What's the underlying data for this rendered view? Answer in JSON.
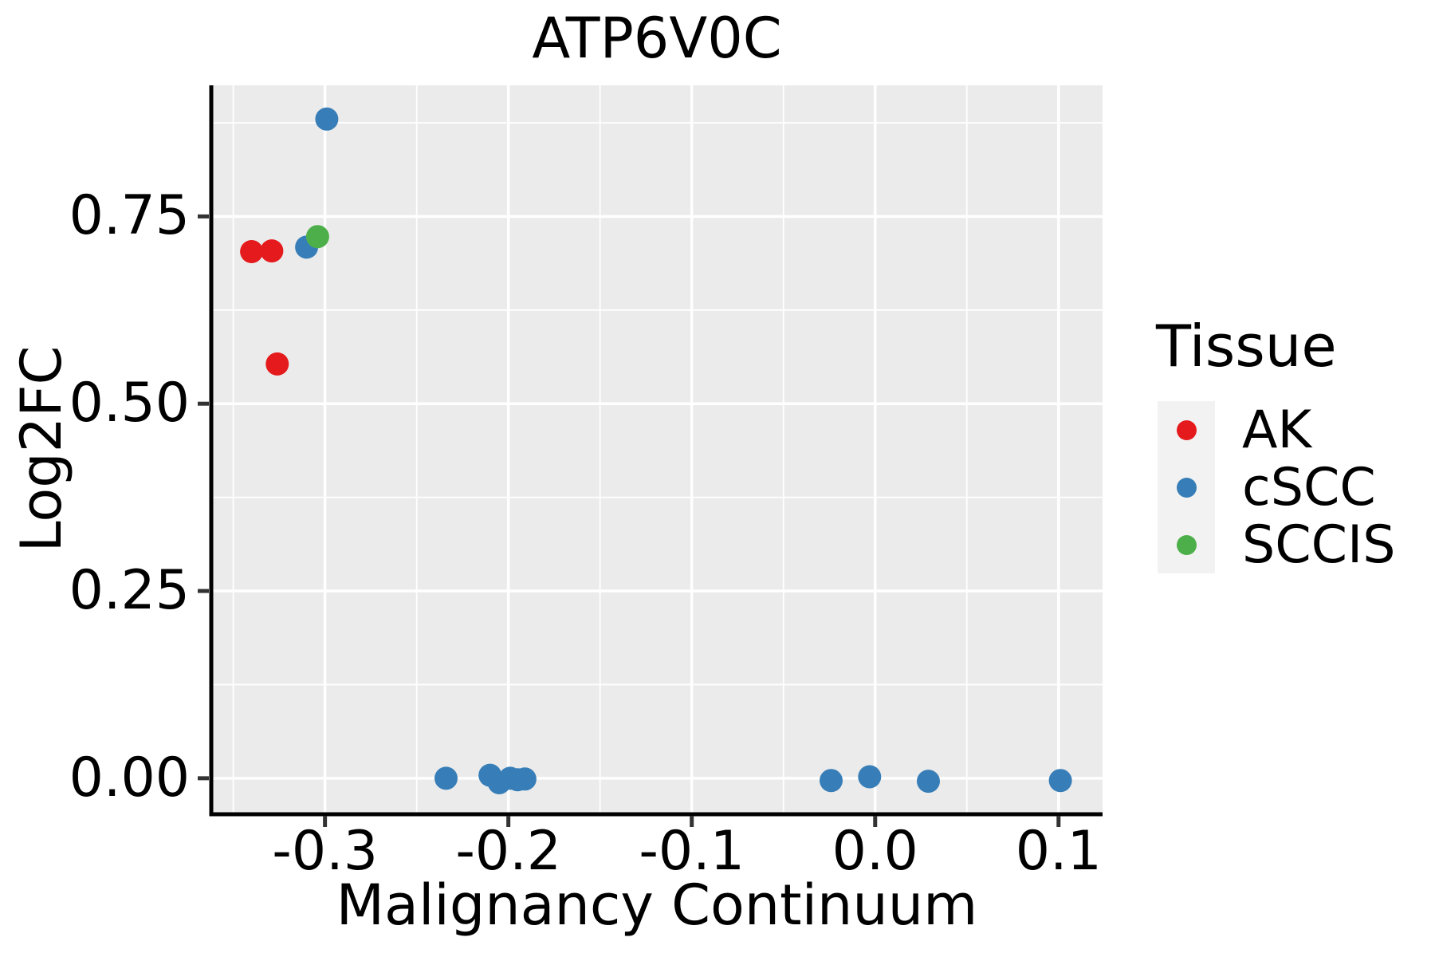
{
  "title": "ATP6V0C",
  "legend": {
    "title": "Tissue",
    "position": "right"
  },
  "colors": {
    "panel_background": "#EBEBEB",
    "gridline": "#FFFFFF",
    "axis_line": "#000000",
    "tick_mark": "#333333",
    "text": "#000000",
    "legend_key_background": "#F2F2F2"
  },
  "chart_data": {
    "type": "scatter",
    "title": "ATP6V0C",
    "xlabel": "Malignancy Continuum",
    "ylabel": "Log2FC",
    "xlim": [
      -0.362,
      0.124
    ],
    "ylim": [
      -0.047,
      0.925
    ],
    "x_ticks": [
      -0.3,
      -0.2,
      -0.1,
      0.0,
      0.1
    ],
    "x_tick_labels": [
      "-0.3",
      "-0.2",
      "-0.1",
      "0.0",
      "0.1"
    ],
    "y_ticks": [
      0.0,
      0.25,
      0.5,
      0.75
    ],
    "y_tick_labels": [
      "0.00",
      "0.25",
      "0.50",
      "0.75"
    ],
    "x_minor_ticks": [
      -0.35,
      -0.25,
      -0.15,
      -0.05,
      0.05
    ],
    "y_minor_ticks": [
      0.125,
      0.375,
      0.625,
      0.875
    ],
    "grid": true,
    "legend_position": "right",
    "series": [
      {
        "name": "AK",
        "color": "#E41A1C",
        "points": [
          [
            -0.34,
            0.703
          ],
          [
            -0.329,
            0.704
          ],
          [
            -0.326,
            0.553
          ]
        ]
      },
      {
        "name": "cSCC",
        "color": "#377EB8",
        "points": [
          [
            -0.31,
            0.709
          ],
          [
            -0.299,
            0.88
          ],
          [
            -0.234,
            0.0
          ],
          [
            -0.21,
            0.004
          ],
          [
            -0.205,
            -0.006
          ],
          [
            -0.199,
            0.0
          ],
          [
            -0.195,
            -0.002
          ],
          [
            -0.191,
            -0.001
          ],
          [
            -0.024,
            -0.003
          ],
          [
            -0.003,
            0.002
          ],
          [
            0.029,
            -0.004
          ],
          [
            0.101,
            -0.003
          ]
        ]
      },
      {
        "name": "SCCIS",
        "color": "#4DAF4A",
        "points": [
          [
            -0.304,
            0.723
          ]
        ]
      }
    ]
  }
}
